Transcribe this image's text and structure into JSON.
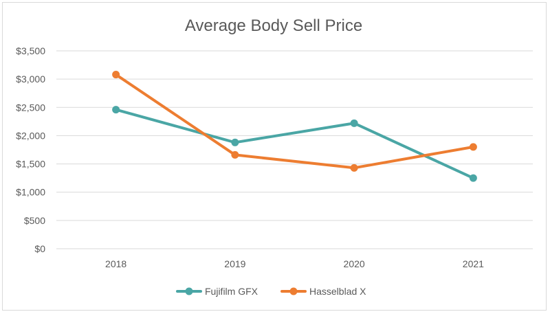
{
  "chart_data": {
    "type": "line",
    "title": "Average Body Sell Price",
    "xlabel": "",
    "ylabel": "",
    "categories": [
      "2018",
      "2019",
      "2020",
      "2021"
    ],
    "y_ticks": [
      "$0",
      "$500",
      "$1,000",
      "$1,500",
      "$2,000",
      "$2,500",
      "$3,000",
      "$3,500"
    ],
    "ylim": [
      0,
      3500
    ],
    "grid": true,
    "legend_position": "bottom",
    "series": [
      {
        "name": "Fujifilm GFX",
        "color": "#4aa6a5",
        "values": [
          2460,
          1880,
          2220,
          1250
        ]
      },
      {
        "name": "Hasselblad X",
        "color": "#ed7d31",
        "values": [
          3080,
          1660,
          1430,
          1800
        ]
      }
    ]
  }
}
